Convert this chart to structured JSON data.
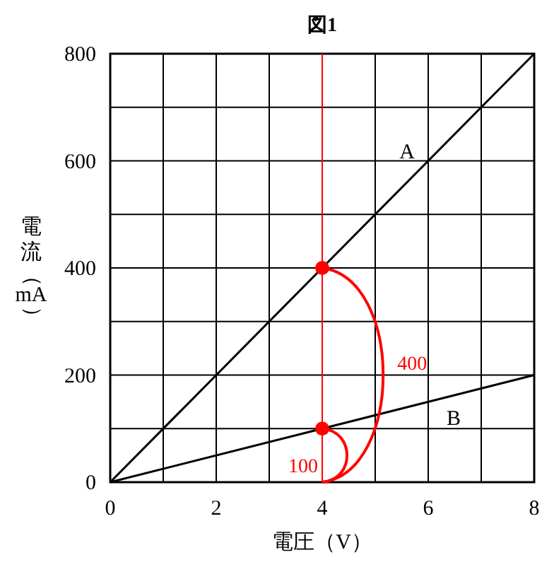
{
  "chart_data": {
    "type": "line",
    "title": "図1",
    "xlabel": "電圧（V）",
    "ylabel": "電流（mA）",
    "x": [
      0,
      8
    ],
    "series": [
      {
        "name": "A",
        "color": "#000000",
        "values": [
          0,
          800
        ]
      },
      {
        "name": "B",
        "color": "#000000",
        "values": [
          0,
          200
        ]
      },
      {
        "type": "scatter",
        "x": [
          4,
          4
        ],
        "color": "#ff0000",
        "values": [
          400,
          100
        ],
        "marker": "circle"
      }
    ],
    "xlim": [
      0,
      8
    ],
    "ylim": [
      0,
      800
    ],
    "xticks": [
      0,
      {
        "value": 1,
        "label": null
      },
      2,
      {
        "value": 3,
        "label": null
      },
      4,
      {
        "value": 5,
        "label": null
      },
      6,
      {
        "value": 7,
        "label": null
      },
      8
    ],
    "yticks": [
      0,
      {
        "value": 100,
        "label": null
      },
      200,
      {
        "value": 300,
        "label": null
      },
      400,
      {
        "value": 500,
        "label": null
      },
      600,
      {
        "value": 700,
        "label": null
      },
      800
    ],
    "grid": true,
    "ref_lines": [
      {
        "axis": "x",
        "value": 4,
        "color": "#ff0000"
      }
    ],
    "annotations": [
      "400",
      "100"
    ]
  }
}
